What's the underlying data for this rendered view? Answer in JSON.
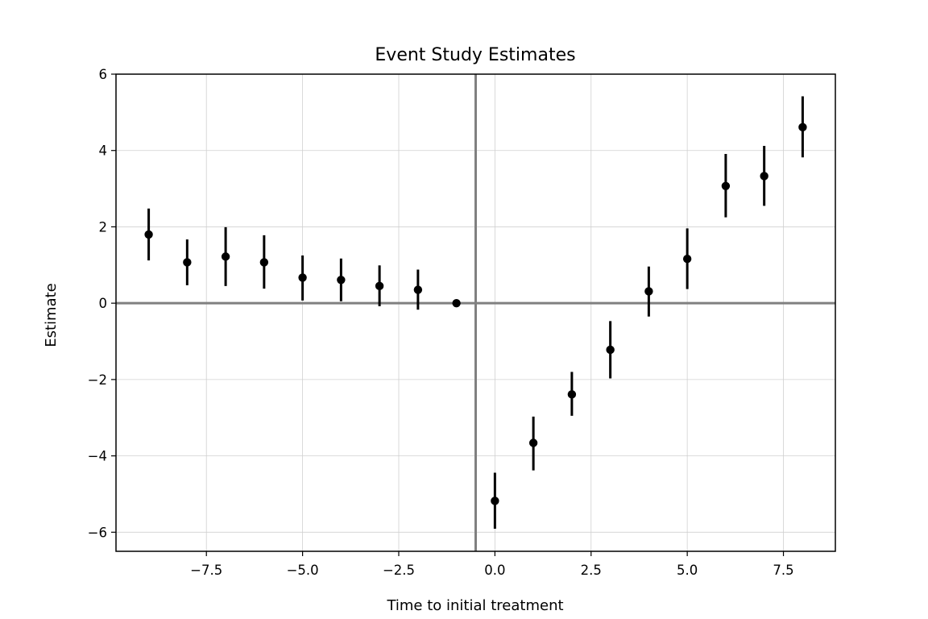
{
  "chart_data": {
    "type": "scatter",
    "title": "Event Study Estimates",
    "xlabel": "Time to initial treatment",
    "ylabel": "Estimate",
    "xlim": [
      -9.85,
      8.85
    ],
    "ylim": [
      -6.5,
      6.0
    ],
    "xticks": [
      -7.5,
      -5.0,
      -2.5,
      0.0,
      2.5,
      5.0,
      7.5
    ],
    "xtick_labels": [
      "−7.5",
      "−5.0",
      "−2.5",
      "0.0",
      "2.5",
      "5.0",
      "7.5"
    ],
    "yticks": [
      -6,
      -4,
      -2,
      0,
      2,
      4,
      6
    ],
    "ytick_labels": [
      "−6",
      "−4",
      "−2",
      "0",
      "2",
      "4",
      "6"
    ],
    "grid": true,
    "reference_lines": {
      "horizontal": 0,
      "vertical": -0.5
    },
    "points": [
      {
        "x": -9,
        "y": 1.8,
        "lo": 1.12,
        "hi": 2.48
      },
      {
        "x": -8,
        "y": 1.07,
        "lo": 0.47,
        "hi": 1.67
      },
      {
        "x": -7,
        "y": 1.22,
        "lo": 0.45,
        "hi": 1.99
      },
      {
        "x": -6,
        "y": 1.07,
        "lo": 0.38,
        "hi": 1.78
      },
      {
        "x": -5,
        "y": 0.67,
        "lo": 0.07,
        "hi": 1.25
      },
      {
        "x": -4,
        "y": 0.61,
        "lo": 0.05,
        "hi": 1.17
      },
      {
        "x": -3,
        "y": 0.45,
        "lo": -0.08,
        "hi": 0.99
      },
      {
        "x": -2,
        "y": 0.35,
        "lo": -0.17,
        "hi": 0.88
      },
      {
        "x": -1,
        "y": 0.0,
        "lo": 0.0,
        "hi": 0.0
      },
      {
        "x": 0,
        "y": -5.18,
        "lo": -5.91,
        "hi": -4.44
      },
      {
        "x": 1,
        "y": -3.66,
        "lo": -4.38,
        "hi": -2.97
      },
      {
        "x": 2,
        "y": -2.39,
        "lo": -2.95,
        "hi": -1.8
      },
      {
        "x": 3,
        "y": -1.22,
        "lo": -1.97,
        "hi": -0.47
      },
      {
        "x": 4,
        "y": 0.31,
        "lo": -0.35,
        "hi": 0.96
      },
      {
        "x": 5,
        "y": 1.16,
        "lo": 0.37,
        "hi": 1.96
      },
      {
        "x": 6,
        "y": 3.07,
        "lo": 2.25,
        "hi": 3.91
      },
      {
        "x": 7,
        "y": 3.33,
        "lo": 2.55,
        "hi": 4.12
      },
      {
        "x": 8,
        "y": 4.61,
        "lo": 3.82,
        "hi": 5.42
      }
    ],
    "colors": {
      "points": "#000000",
      "reference": "#808080",
      "grid": "#d0d0d0"
    }
  }
}
